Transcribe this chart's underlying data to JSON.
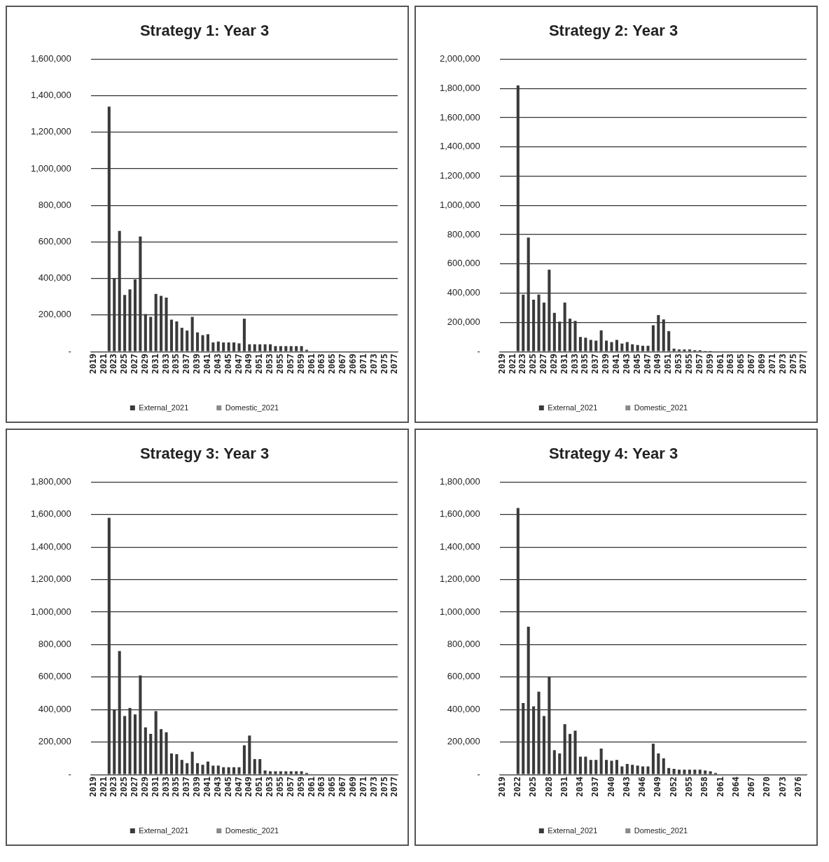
{
  "chart_data": [
    {
      "type": "bar",
      "title": "Strategy 1: Year 3",
      "stacked": true,
      "grid": "y",
      "legend": "bottom",
      "ylim": [
        0,
        1600000
      ],
      "yticks": [
        {
          "value": 0,
          "label": "-"
        },
        {
          "value": 200000,
          "label": "200,000"
        },
        {
          "value": 400000,
          "label": "400,000"
        },
        {
          "value": 600000,
          "label": "600,000"
        },
        {
          "value": 800000,
          "label": "800,000"
        },
        {
          "value": 1000000,
          "label": "1,000,000"
        },
        {
          "value": 1200000,
          "label": "1,200,000"
        },
        {
          "value": 1400000,
          "label": "1,400,000"
        },
        {
          "value": 1600000,
          "label": "1,600,000"
        }
      ],
      "categories": [
        "2019",
        null,
        "2021",
        null,
        "2023",
        null,
        "2025",
        null,
        "2027",
        null,
        "2029",
        null,
        "2031",
        null,
        "2033",
        null,
        "2035",
        null,
        "2037",
        null,
        "2039",
        null,
        "2041",
        null,
        "2043",
        null,
        "2045",
        null,
        "2047",
        null,
        "2049",
        null,
        "2051",
        null,
        "2053",
        null,
        "2055",
        null,
        "2057",
        null,
        "2059",
        null,
        "2061",
        null,
        "2063",
        null,
        "2065",
        null,
        "2067",
        null,
        "2069",
        null,
        "2071",
        null,
        "2073",
        null,
        "2075",
        null,
        "2077"
      ],
      "series": [
        {
          "name": "External_2021",
          "color": "#3a3a3a",
          "values": [
            null,
            null,
            null,
            1340000,
            400000,
            660000,
            310000,
            340000,
            395000,
            630000,
            205000,
            190000,
            315000,
            305000,
            295000,
            175000,
            165000,
            130000,
            115000,
            190000,
            105000,
            90000,
            95000,
            50000,
            55000,
            50000,
            50000,
            50000,
            45000,
            180000,
            40000,
            40000,
            40000,
            40000,
            40000,
            30000,
            30000,
            30000,
            30000,
            30000,
            30000,
            10000,
            null,
            null,
            null,
            null,
            null,
            null,
            null,
            null,
            null,
            null,
            null,
            null,
            null,
            null,
            null,
            null,
            null
          ]
        },
        {
          "name": "Domestic_2021",
          "color": "#8a8a8a",
          "values": [
            null,
            null,
            null,
            null,
            null,
            null,
            null,
            null,
            null,
            null,
            null,
            null,
            null,
            null,
            null,
            null,
            null,
            null,
            null,
            null,
            null,
            null,
            null,
            null,
            null,
            null,
            null,
            null,
            null,
            null,
            null,
            null,
            null,
            null,
            null,
            null,
            null,
            null,
            null,
            null,
            null,
            null,
            null,
            null,
            null,
            null,
            null,
            null,
            null,
            null,
            null,
            null,
            null,
            null,
            null,
            null,
            null,
            null,
            null
          ]
        }
      ]
    },
    {
      "type": "bar",
      "title": "Strategy 2: Year 3",
      "stacked": true,
      "grid": "y",
      "legend": "bottom",
      "ylim": [
        0,
        2000000
      ],
      "yticks": [
        {
          "value": 0,
          "label": "-"
        },
        {
          "value": 200000,
          "label": "200,000"
        },
        {
          "value": 400000,
          "label": "400,000"
        },
        {
          "value": 600000,
          "label": "600,000"
        },
        {
          "value": 800000,
          "label": "800,000"
        },
        {
          "value": 1000000,
          "label": "1,000,000"
        },
        {
          "value": 1200000,
          "label": "1,200,000"
        },
        {
          "value": 1400000,
          "label": "1,400,000"
        },
        {
          "value": 1600000,
          "label": "1,600,000"
        },
        {
          "value": 1800000,
          "label": "1,800,000"
        },
        {
          "value": 2000000,
          "label": "2,000,000"
        }
      ],
      "categories": [
        "2019",
        null,
        "2021",
        null,
        "2023",
        null,
        "2025",
        null,
        "2027",
        null,
        "2029",
        null,
        "2031",
        null,
        "2033",
        null,
        "2035",
        null,
        "2037",
        null,
        "2039",
        null,
        "2041",
        null,
        "2043",
        null,
        "2045",
        null,
        "2047",
        null,
        "2049",
        null,
        "2051",
        null,
        "2053",
        null,
        "2055",
        null,
        "2057",
        null,
        "2059",
        null,
        "2061",
        null,
        "2063",
        null,
        "2065",
        null,
        "2067",
        null,
        "2069",
        null,
        "2071",
        null,
        "2073",
        null,
        "2075",
        null,
        "2077"
      ],
      "series": [
        {
          "name": "External_2021",
          "color": "#3a3a3a",
          "values": [
            null,
            null,
            null,
            1820000,
            390000,
            780000,
            355000,
            390000,
            335000,
            560000,
            265000,
            205000,
            335000,
            225000,
            210000,
            100000,
            95000,
            80000,
            75000,
            145000,
            75000,
            65000,
            80000,
            55000,
            65000,
            50000,
            45000,
            40000,
            40000,
            180000,
            250000,
            220000,
            140000,
            20000,
            15000,
            15000,
            15000,
            10000,
            10000,
            5000,
            5000,
            null,
            null,
            null,
            null,
            null,
            null,
            null,
            null,
            null,
            null,
            null,
            null,
            null,
            null,
            null,
            null,
            null,
            null
          ]
        },
        {
          "name": "Domestic_2021",
          "color": "#8a8a8a",
          "values": [
            null,
            null,
            null,
            null,
            null,
            null,
            null,
            null,
            null,
            null,
            null,
            null,
            null,
            null,
            null,
            null,
            null,
            null,
            null,
            null,
            null,
            null,
            null,
            null,
            null,
            null,
            null,
            null,
            null,
            null,
            null,
            null,
            null,
            null,
            null,
            null,
            null,
            null,
            null,
            null,
            null,
            null,
            null,
            null,
            null,
            null,
            null,
            null,
            null,
            null,
            null,
            null,
            null,
            null,
            null,
            null,
            null,
            null,
            null
          ]
        }
      ]
    },
    {
      "type": "bar",
      "title": "Strategy 3: Year 3",
      "stacked": true,
      "grid": "y",
      "legend": "bottom",
      "ylim": [
        0,
        1800000
      ],
      "yticks": [
        {
          "value": 0,
          "label": "-"
        },
        {
          "value": 200000,
          "label": "200,000"
        },
        {
          "value": 400000,
          "label": "400,000"
        },
        {
          "value": 600000,
          "label": "600,000"
        },
        {
          "value": 800000,
          "label": "800,000"
        },
        {
          "value": 1000000,
          "label": "1,000,000"
        },
        {
          "value": 1200000,
          "label": "1,200,000"
        },
        {
          "value": 1400000,
          "label": "1,400,000"
        },
        {
          "value": 1600000,
          "label": "1,600,000"
        },
        {
          "value": 1800000,
          "label": "1,800,000"
        }
      ],
      "categories": [
        "2019",
        null,
        "2021",
        null,
        "2023",
        null,
        "2025",
        null,
        "2027",
        null,
        "2029",
        null,
        "2031",
        null,
        "2033",
        null,
        "2035",
        null,
        "2037",
        null,
        "2039",
        null,
        "2041",
        null,
        "2043",
        null,
        "2045",
        null,
        "2047",
        null,
        "2049",
        null,
        "2051",
        null,
        "2053",
        null,
        "2055",
        null,
        "2057",
        null,
        "2059",
        null,
        "2061",
        null,
        "2063",
        null,
        "2065",
        null,
        "2067",
        null,
        "2069",
        null,
        "2071",
        null,
        "2073",
        null,
        "2075",
        null,
        "2077"
      ],
      "series": [
        {
          "name": "External_2021",
          "color": "#3a3a3a",
          "values": [
            null,
            null,
            null,
            1580000,
            400000,
            760000,
            360000,
            410000,
            370000,
            610000,
            290000,
            250000,
            390000,
            280000,
            260000,
            130000,
            125000,
            90000,
            70000,
            140000,
            70000,
            60000,
            80000,
            55000,
            55000,
            45000,
            45000,
            45000,
            45000,
            180000,
            240000,
            95000,
            95000,
            25000,
            20000,
            20000,
            20000,
            20000,
            20000,
            20000,
            20000,
            10000,
            null,
            null,
            null,
            null,
            null,
            null,
            null,
            null,
            null,
            null,
            null,
            null,
            null,
            null,
            null,
            null,
            null
          ]
        },
        {
          "name": "Domestic_2021",
          "color": "#8a8a8a",
          "values": [
            null,
            null,
            null,
            null,
            null,
            null,
            null,
            null,
            null,
            null,
            null,
            null,
            null,
            null,
            null,
            null,
            null,
            null,
            null,
            null,
            null,
            null,
            null,
            null,
            null,
            null,
            null,
            null,
            null,
            null,
            null,
            null,
            null,
            null,
            null,
            null,
            null,
            null,
            null,
            null,
            null,
            null,
            null,
            null,
            null,
            null,
            null,
            null,
            null,
            null,
            null,
            null,
            null,
            null,
            null,
            null,
            null,
            null,
            null
          ]
        }
      ]
    },
    {
      "type": "bar",
      "title": "Strategy 4: Year 3",
      "stacked": true,
      "grid": "y",
      "legend": "bottom",
      "ylim": [
        0,
        1800000
      ],
      "yticks": [
        {
          "value": 0,
          "label": "-"
        },
        {
          "value": 200000,
          "label": "200,000"
        },
        {
          "value": 400000,
          "label": "400,000"
        },
        {
          "value": 600000,
          "label": "600,000"
        },
        {
          "value": 800000,
          "label": "800,000"
        },
        {
          "value": 1000000,
          "label": "1,000,000"
        },
        {
          "value": 1200000,
          "label": "1,200,000"
        },
        {
          "value": 1400000,
          "label": "1,400,000"
        },
        {
          "value": 1600000,
          "label": "1,600,000"
        },
        {
          "value": 1800000,
          "label": "1,800,000"
        }
      ],
      "categories": [
        "2019",
        null,
        null,
        "2022",
        null,
        null,
        "2025",
        null,
        null,
        "2028",
        null,
        null,
        "2031",
        null,
        null,
        "2034",
        null,
        null,
        "2037",
        null,
        null,
        "2040",
        null,
        null,
        "2043",
        null,
        null,
        "2046",
        null,
        null,
        "2049",
        null,
        null,
        "2052",
        null,
        null,
        "2055",
        null,
        null,
        "2058",
        null,
        null,
        "2061",
        null,
        null,
        "2064",
        null,
        null,
        "2067",
        null,
        null,
        "2070",
        null,
        null,
        "2073",
        null,
        null,
        "2076",
        null
      ],
      "series": [
        {
          "name": "External_2021",
          "color": "#3a3a3a",
          "values": [
            null,
            null,
            null,
            1640000,
            440000,
            910000,
            420000,
            510000,
            360000,
            600000,
            150000,
            130000,
            310000,
            250000,
            270000,
            110000,
            110000,
            90000,
            90000,
            160000,
            90000,
            85000,
            90000,
            50000,
            65000,
            60000,
            55000,
            50000,
            50000,
            190000,
            130000,
            100000,
            40000,
            35000,
            30000,
            30000,
            30000,
            30000,
            30000,
            25000,
            20000,
            10000,
            null,
            null,
            null,
            null,
            null,
            null,
            null,
            null,
            null,
            null,
            null,
            null,
            null,
            null,
            null,
            null,
            null
          ]
        },
        {
          "name": "Domestic_2021",
          "color": "#8a8a8a",
          "values": [
            null,
            null,
            null,
            null,
            null,
            null,
            null,
            null,
            null,
            null,
            null,
            null,
            null,
            null,
            null,
            null,
            null,
            null,
            null,
            null,
            null,
            null,
            null,
            null,
            null,
            null,
            null,
            null,
            null,
            null,
            null,
            null,
            null,
            null,
            null,
            null,
            null,
            null,
            null,
            null,
            null,
            null,
            null,
            null,
            null,
            null,
            null,
            null,
            null,
            null,
            null,
            null,
            null,
            null,
            null,
            null,
            null,
            null,
            null
          ]
        }
      ]
    }
  ]
}
